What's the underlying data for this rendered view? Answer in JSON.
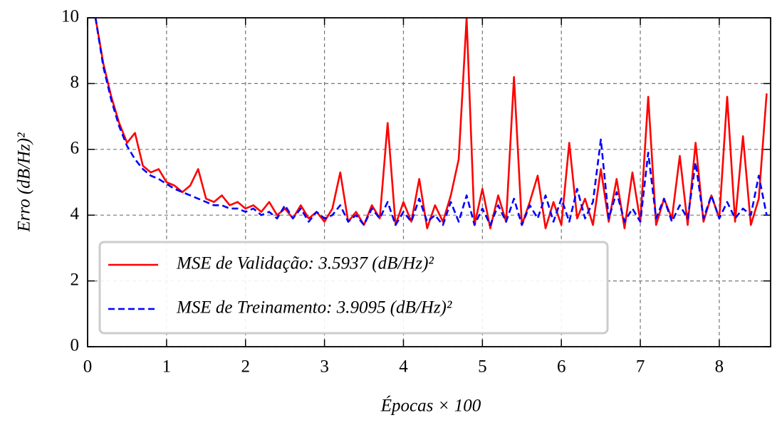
{
  "chart_data": {
    "type": "line",
    "x_label": "Épocas × 100",
    "y_label": "Erro (dB/Hz)²",
    "xlim": [
      0,
      8.65
    ],
    "ylim": [
      0,
      10
    ],
    "xticks": [
      0,
      1,
      2,
      3,
      4,
      5,
      6,
      7,
      8
    ],
    "yticks": [
      0,
      2,
      4,
      6,
      8,
      10
    ],
    "grid": true,
    "legend_position": "lower left",
    "x": [
      0.1,
      0.2,
      0.3,
      0.4,
      0.5,
      0.6,
      0.7,
      0.8,
      0.9,
      1.0,
      1.1,
      1.2,
      1.3,
      1.4,
      1.5,
      1.6,
      1.7,
      1.8,
      1.9,
      2.0,
      2.1,
      2.2,
      2.3,
      2.4,
      2.5,
      2.6,
      2.7,
      2.8,
      2.9,
      3.0,
      3.1,
      3.2,
      3.3,
      3.4,
      3.5,
      3.6,
      3.7,
      3.8,
      3.9,
      4.0,
      4.1,
      4.2,
      4.3,
      4.4,
      4.5,
      4.6,
      4.7,
      4.8,
      4.9,
      5.0,
      5.1,
      5.2,
      5.3,
      5.4,
      5.5,
      5.6,
      5.7,
      5.8,
      5.9,
      6.0,
      6.1,
      6.2,
      6.3,
      6.4,
      6.5,
      6.6,
      6.7,
      6.8,
      6.9,
      7.0,
      7.1,
      7.2,
      7.3,
      7.4,
      7.5,
      7.6,
      7.7,
      7.8,
      7.9,
      8.0,
      8.1,
      8.2,
      8.3,
      8.4,
      8.5,
      8.6
    ],
    "series": [
      {
        "name": "MSE de Validação: 3.5937 (dB/Hz)²",
        "color": "#ff0000",
        "dash": "solid",
        "values": [
          10.0,
          8.6,
          7.6,
          6.8,
          6.2,
          6.5,
          5.5,
          5.3,
          5.4,
          5.0,
          4.9,
          4.7,
          4.9,
          5.4,
          4.5,
          4.4,
          4.6,
          4.3,
          4.4,
          4.2,
          4.3,
          4.1,
          4.4,
          4.0,
          4.2,
          3.9,
          4.3,
          3.9,
          4.1,
          3.8,
          4.2,
          5.3,
          3.8,
          4.1,
          3.7,
          4.3,
          3.9,
          6.8,
          3.7,
          4.4,
          3.8,
          5.1,
          3.6,
          4.3,
          3.8,
          4.6,
          5.7,
          10.0,
          3.7,
          4.8,
          3.6,
          4.6,
          3.8,
          8.2,
          3.7,
          4.4,
          5.2,
          3.6,
          4.4,
          3.7,
          6.2,
          3.9,
          4.5,
          3.7,
          5.4,
          3.8,
          5.1,
          3.6,
          5.3,
          3.8,
          7.6,
          3.7,
          4.5,
          3.9,
          5.8,
          3.7,
          6.2,
          3.8,
          4.6,
          3.9,
          7.6,
          3.8,
          6.4,
          3.7,
          4.5,
          7.7
        ]
      },
      {
        "name": "MSE de Treinamento: 3.9095 (dB/Hz)²",
        "color": "#0000ff",
        "dash": "dashed",
        "values": [
          10.0,
          8.5,
          7.5,
          6.7,
          6.1,
          5.7,
          5.4,
          5.2,
          5.1,
          4.95,
          4.8,
          4.7,
          4.6,
          4.5,
          4.4,
          4.3,
          4.3,
          4.2,
          4.2,
          4.1,
          4.2,
          4.0,
          4.1,
          3.9,
          4.3,
          3.9,
          4.2,
          3.8,
          4.1,
          3.9,
          4.0,
          4.3,
          3.8,
          4.0,
          3.7,
          4.2,
          3.9,
          4.4,
          3.7,
          4.1,
          3.8,
          4.5,
          3.8,
          4.0,
          3.7,
          4.4,
          3.8,
          4.6,
          3.7,
          4.2,
          3.7,
          4.3,
          3.8,
          4.5,
          3.7,
          4.3,
          3.9,
          4.6,
          3.8,
          4.5,
          3.8,
          4.8,
          3.9,
          4.4,
          6.3,
          3.9,
          4.7,
          3.8,
          4.2,
          3.8,
          5.9,
          3.9,
          4.5,
          3.8,
          4.3,
          3.9,
          5.6,
          3.9,
          4.6,
          3.9,
          4.4,
          3.9,
          4.2,
          4.0,
          5.2,
          4.0
        ]
      }
    ]
  }
}
